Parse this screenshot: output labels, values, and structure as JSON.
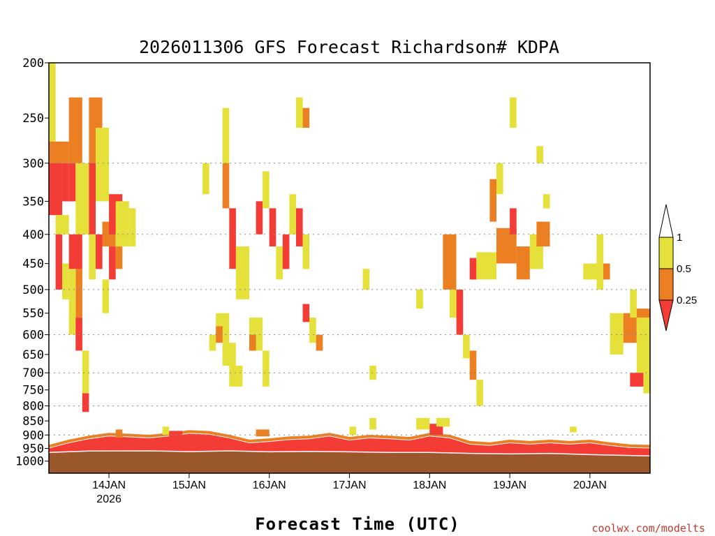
{
  "chart_data": {
    "type": "heatmap",
    "title": "2026011306 GFS Forecast Richardson# KDPA",
    "xlabel": "Forecast Time (UTC)",
    "ylabel": "",
    "credit": "coolwx.com/modelts",
    "y_scale": "log",
    "y_inverted": true,
    "ylim": [
      200,
      1050
    ],
    "y_ticks": [
      "200",
      "250",
      "300",
      "350",
      "400",
      "450",
      "500",
      "550",
      "600",
      "650",
      "700",
      "750",
      "800",
      "850",
      "900",
      "950",
      "1000"
    ],
    "y_gridlines_dotted": [
      "300",
      "400",
      "500",
      "600",
      "700",
      "800",
      "900"
    ],
    "x_range_hours": [
      0,
      180
    ],
    "x_ticks": [
      {
        "label": "14JAN",
        "sub": "2026",
        "hour": 18
      },
      {
        "label": "15JAN",
        "sub": "",
        "hour": 42
      },
      {
        "label": "16JAN",
        "sub": "",
        "hour": 66
      },
      {
        "label": "17JAN",
        "sub": "",
        "hour": 90
      },
      {
        "label": "18JAN",
        "sub": "",
        "hour": 114
      },
      {
        "label": "19JAN",
        "sub": "",
        "hour": 138
      },
      {
        "label": "20JAN",
        "sub": "",
        "hour": 162
      }
    ],
    "legend": {
      "placement": "right",
      "ticks": [
        "1",
        "0.5",
        "0.25"
      ],
      "bins": [
        {
          "range": "0.5-1",
          "color": "#e5e03a"
        },
        {
          "range": "0.25-0.5",
          "color": "#ec7f22"
        },
        {
          "range": "<0.25",
          "color": "#f33c36"
        }
      ]
    },
    "colors": {
      "low": "#f33c36",
      "mid": "#ec7f22",
      "high": "#e5e03a",
      "ground": "#9b572c"
    },
    "ground_pressure": [
      [
        0,
        968
      ],
      [
        12,
        963
      ],
      [
        30,
        962
      ],
      [
        42,
        965
      ],
      [
        54,
        962
      ],
      [
        66,
        966
      ],
      [
        78,
        964
      ],
      [
        90,
        966
      ],
      [
        102,
        968
      ],
      [
        114,
        968
      ],
      [
        126,
        972
      ],
      [
        138,
        974
      ],
      [
        150,
        972
      ],
      [
        162,
        977
      ],
      [
        180,
        982
      ]
    ],
    "surface_layer_top": [
      [
        0,
        950
      ],
      [
        6,
        930
      ],
      [
        12,
        915
      ],
      [
        18,
        905
      ],
      [
        24,
        908
      ],
      [
        30,
        912
      ],
      [
        36,
        905
      ],
      [
        42,
        895
      ],
      [
        48,
        898
      ],
      [
        54,
        912
      ],
      [
        60,
        930
      ],
      [
        66,
        925
      ],
      [
        72,
        918
      ],
      [
        78,
        915
      ],
      [
        84,
        905
      ],
      [
        90,
        920
      ],
      [
        96,
        912
      ],
      [
        102,
        915
      ],
      [
        108,
        920
      ],
      [
        114,
        905
      ],
      [
        120,
        912
      ],
      [
        126,
        935
      ],
      [
        132,
        940
      ],
      [
        138,
        930
      ],
      [
        144,
        935
      ],
      [
        150,
        930
      ],
      [
        156,
        935
      ],
      [
        162,
        930
      ],
      [
        168,
        940
      ],
      [
        174,
        948
      ],
      [
        180,
        950
      ]
    ],
    "cells": [
      {
        "t": [
          0,
          2
        ],
        "p": [
          200,
          275
        ],
        "c": "high"
      },
      {
        "t": [
          0,
          6
        ],
        "p": [
          275,
          300
        ],
        "c": "mid"
      },
      {
        "t": [
          0,
          4
        ],
        "p": [
          300,
          370
        ],
        "c": "low"
      },
      {
        "t": [
          4,
          6
        ],
        "p": [
          300,
          350
        ],
        "c": "low"
      },
      {
        "t": [
          2,
          6
        ],
        "p": [
          370,
          400
        ],
        "c": "high"
      },
      {
        "t": [
          2,
          4
        ],
        "p": [
          400,
          500
        ],
        "c": "low"
      },
      {
        "t": [
          4,
          6
        ],
        "p": [
          450,
          520
        ],
        "c": "high"
      },
      {
        "t": [
          6,
          10
        ],
        "p": [
          230,
          300
        ],
        "c": "mid"
      },
      {
        "t": [
          6,
          8
        ],
        "p": [
          300,
          350
        ],
        "c": "low"
      },
      {
        "t": [
          8,
          12
        ],
        "p": [
          300,
          400
        ],
        "c": "high"
      },
      {
        "t": [
          6,
          10
        ],
        "p": [
          400,
          460
        ],
        "c": "low"
      },
      {
        "t": [
          8,
          10
        ],
        "p": [
          460,
          560
        ],
        "c": "mid"
      },
      {
        "t": [
          6,
          8
        ],
        "p": [
          460,
          600
        ],
        "c": "high"
      },
      {
        "t": [
          8,
          10
        ],
        "p": [
          560,
          640
        ],
        "c": "low"
      },
      {
        "t": [
          10,
          12
        ],
        "p": [
          640,
          760
        ],
        "c": "high"
      },
      {
        "t": [
          10,
          12
        ],
        "p": [
          760,
          820
        ],
        "c": "low"
      },
      {
        "t": [
          12,
          16
        ],
        "p": [
          230,
          300
        ],
        "c": "mid"
      },
      {
        "t": [
          12,
          14
        ],
        "p": [
          300,
          400
        ],
        "c": "low"
      },
      {
        "t": [
          14,
          18
        ],
        "p": [
          260,
          350
        ],
        "c": "high"
      },
      {
        "t": [
          12,
          14
        ],
        "p": [
          400,
          480
        ],
        "c": "high"
      },
      {
        "t": [
          14,
          16
        ],
        "p": [
          400,
          460
        ],
        "c": "low"
      },
      {
        "t": [
          16,
          20
        ],
        "p": [
          380,
          420
        ],
        "c": "mid"
      },
      {
        "t": [
          18,
          20
        ],
        "p": [
          420,
          480
        ],
        "c": "low"
      },
      {
        "t": [
          16,
          18
        ],
        "p": [
          480,
          550
        ],
        "c": "high"
      },
      {
        "t": [
          18,
          22
        ],
        "p": [
          340,
          400
        ],
        "c": "low"
      },
      {
        "t": [
          20,
          24
        ],
        "p": [
          350,
          420
        ],
        "c": "high"
      },
      {
        "t": [
          20,
          22
        ],
        "p": [
          420,
          460
        ],
        "c": "mid"
      },
      {
        "t": [
          24,
          26
        ],
        "p": [
          360,
          420
        ],
        "c": "high"
      },
      {
        "t": [
          48,
          50
        ],
        "p": [
          600,
          640
        ],
        "c": "high"
      },
      {
        "t": [
          50,
          54
        ],
        "p": [
          550,
          620
        ],
        "c": "high"
      },
      {
        "t": [
          52,
          56
        ],
        "p": [
          620,
          680
        ],
        "c": "high"
      },
      {
        "t": [
          54,
          58
        ],
        "p": [
          680,
          740
        ],
        "c": "high"
      },
      {
        "t": [
          50,
          52
        ],
        "p": [
          580,
          620
        ],
        "c": "mid"
      },
      {
        "t": [
          46,
          48
        ],
        "p": [
          300,
          340
        ],
        "c": "high"
      },
      {
        "t": [
          52,
          54
        ],
        "p": [
          240,
          300
        ],
        "c": "high"
      },
      {
        "t": [
          52,
          54
        ],
        "p": [
          300,
          360
        ],
        "c": "mid"
      },
      {
        "t": [
          54,
          56
        ],
        "p": [
          360,
          460
        ],
        "c": "low"
      },
      {
        "t": [
          56,
          60
        ],
        "p": [
          420,
          520
        ],
        "c": "high"
      },
      {
        "t": [
          60,
          64
        ],
        "p": [
          560,
          640
        ],
        "c": "high"
      },
      {
        "t": [
          64,
          66
        ],
        "p": [
          640,
          740
        ],
        "c": "high"
      },
      {
        "t": [
          60,
          62
        ],
        "p": [
          600,
          640
        ],
        "c": "mid"
      },
      {
        "t": [
          62,
          64
        ],
        "p": [
          350,
          400
        ],
        "c": "low"
      },
      {
        "t": [
          64,
          66
        ],
        "p": [
          310,
          360
        ],
        "c": "high"
      },
      {
        "t": [
          66,
          68
        ],
        "p": [
          360,
          420
        ],
        "c": "low"
      },
      {
        "t": [
          68,
          70
        ],
        "p": [
          420,
          480
        ],
        "c": "high"
      },
      {
        "t": [
          70,
          72
        ],
        "p": [
          400,
          460
        ],
        "c": "low"
      },
      {
        "t": [
          72,
          74
        ],
        "p": [
          340,
          400
        ],
        "c": "high"
      },
      {
        "t": [
          74,
          76
        ],
        "p": [
          360,
          420
        ],
        "c": "low"
      },
      {
        "t": [
          76,
          78
        ],
        "p": [
          400,
          460
        ],
        "c": "high"
      },
      {
        "t": [
          78,
          80
        ],
        "p": [
          560,
          620
        ],
        "c": "high"
      },
      {
        "t": [
          80,
          82
        ],
        "p": [
          600,
          640
        ],
        "c": "mid"
      },
      {
        "t": [
          76,
          78
        ],
        "p": [
          530,
          570
        ],
        "c": "low"
      },
      {
        "t": [
          76,
          78
        ],
        "p": [
          240,
          260
        ],
        "c": "mid"
      },
      {
        "t": [
          74,
          76
        ],
        "p": [
          230,
          260
        ],
        "c": "high"
      },
      {
        "t": [
          94,
          96
        ],
        "p": [
          460,
          500
        ],
        "c": "high"
      },
      {
        "t": [
          96,
          98
        ],
        "p": [
          680,
          720
        ],
        "c": "high"
      },
      {
        "t": [
          110,
          112
        ],
        "p": [
          500,
          540
        ],
        "c": "high"
      },
      {
        "t": [
          118,
          122
        ],
        "p": [
          400,
          500
        ],
        "c": "mid"
      },
      {
        "t": [
          120,
          122
        ],
        "p": [
          500,
          560
        ],
        "c": "high"
      },
      {
        "t": [
          122,
          124
        ],
        "p": [
          500,
          600
        ],
        "c": "low"
      },
      {
        "t": [
          124,
          126
        ],
        "p": [
          600,
          660
        ],
        "c": "high"
      },
      {
        "t": [
          126,
          128
        ],
        "p": [
          640,
          720
        ],
        "c": "mid"
      },
      {
        "t": [
          128,
          130
        ],
        "p": [
          720,
          800
        ],
        "c": "high"
      },
      {
        "t": [
          126,
          128
        ],
        "p": [
          440,
          480
        ],
        "c": "low"
      },
      {
        "t": [
          128,
          134
        ],
        "p": [
          430,
          480
        ],
        "c": "high"
      },
      {
        "t": [
          132,
          134
        ],
        "p": [
          320,
          380
        ],
        "c": "mid"
      },
      {
        "t": [
          134,
          140
        ],
        "p": [
          390,
          450
        ],
        "c": "mid"
      },
      {
        "t": [
          138,
          140
        ],
        "p": [
          360,
          400
        ],
        "c": "low"
      },
      {
        "t": [
          140,
          144
        ],
        "p": [
          420,
          480
        ],
        "c": "mid"
      },
      {
        "t": [
          144,
          148
        ],
        "p": [
          400,
          460
        ],
        "c": "high"
      },
      {
        "t": [
          146,
          150
        ],
        "p": [
          380,
          420
        ],
        "c": "mid"
      },
      {
        "t": [
          134,
          136
        ],
        "p": [
          300,
          340
        ],
        "c": "high"
      },
      {
        "t": [
          138,
          140
        ],
        "p": [
          230,
          260
        ],
        "c": "high"
      },
      {
        "t": [
          146,
          148
        ],
        "p": [
          280,
          300
        ],
        "c": "high"
      },
      {
        "t": [
          148,
          150
        ],
        "p": [
          340,
          360
        ],
        "c": "high"
      },
      {
        "t": [
          160,
          164
        ],
        "p": [
          450,
          480
        ],
        "c": "high"
      },
      {
        "t": [
          164,
          166
        ],
        "p": [
          400,
          500
        ],
        "c": "high"
      },
      {
        "t": [
          166,
          168
        ],
        "p": [
          450,
          480
        ],
        "c": "mid"
      },
      {
        "t": [
          168,
          172
        ],
        "p": [
          550,
          650
        ],
        "c": "high"
      },
      {
        "t": [
          172,
          176
        ],
        "p": [
          550,
          620
        ],
        "c": "mid"
      },
      {
        "t": [
          174,
          176
        ],
        "p": [
          500,
          560
        ],
        "c": "high"
      },
      {
        "t": [
          176,
          180
        ],
        "p": [
          560,
          700
        ],
        "c": "high"
      },
      {
        "t": [
          176,
          180
        ],
        "p": [
          540,
          560
        ],
        "c": "mid"
      },
      {
        "t": [
          178,
          180
        ],
        "p": [
          700,
          760
        ],
        "c": "high"
      },
      {
        "t": [
          174,
          178
        ],
        "p": [
          700,
          740
        ],
        "c": "low"
      },
      {
        "t": [
          20,
          22
        ],
        "p": [
          880,
          910
        ],
        "c": "mid"
      },
      {
        "t": [
          34,
          36
        ],
        "p": [
          870,
          900
        ],
        "c": "high"
      },
      {
        "t": [
          36,
          40
        ],
        "p": [
          885,
          905
        ],
        "c": "low"
      },
      {
        "t": [
          62,
          66
        ],
        "p": [
          880,
          905
        ],
        "c": "mid"
      },
      {
        "t": [
          90,
          92
        ],
        "p": [
          870,
          900
        ],
        "c": "high"
      },
      {
        "t": [
          96,
          98
        ],
        "p": [
          840,
          880
        ],
        "c": "high"
      },
      {
        "t": [
          110,
          114
        ],
        "p": [
          840,
          880
        ],
        "c": "high"
      },
      {
        "t": [
          114,
          118
        ],
        "p": [
          860,
          900
        ],
        "c": "low"
      },
      {
        "t": [
          116,
          120
        ],
        "p": [
          840,
          870
        ],
        "c": "high"
      },
      {
        "t": [
          156,
          158
        ],
        "p": [
          870,
          890
        ],
        "c": "high"
      }
    ]
  }
}
